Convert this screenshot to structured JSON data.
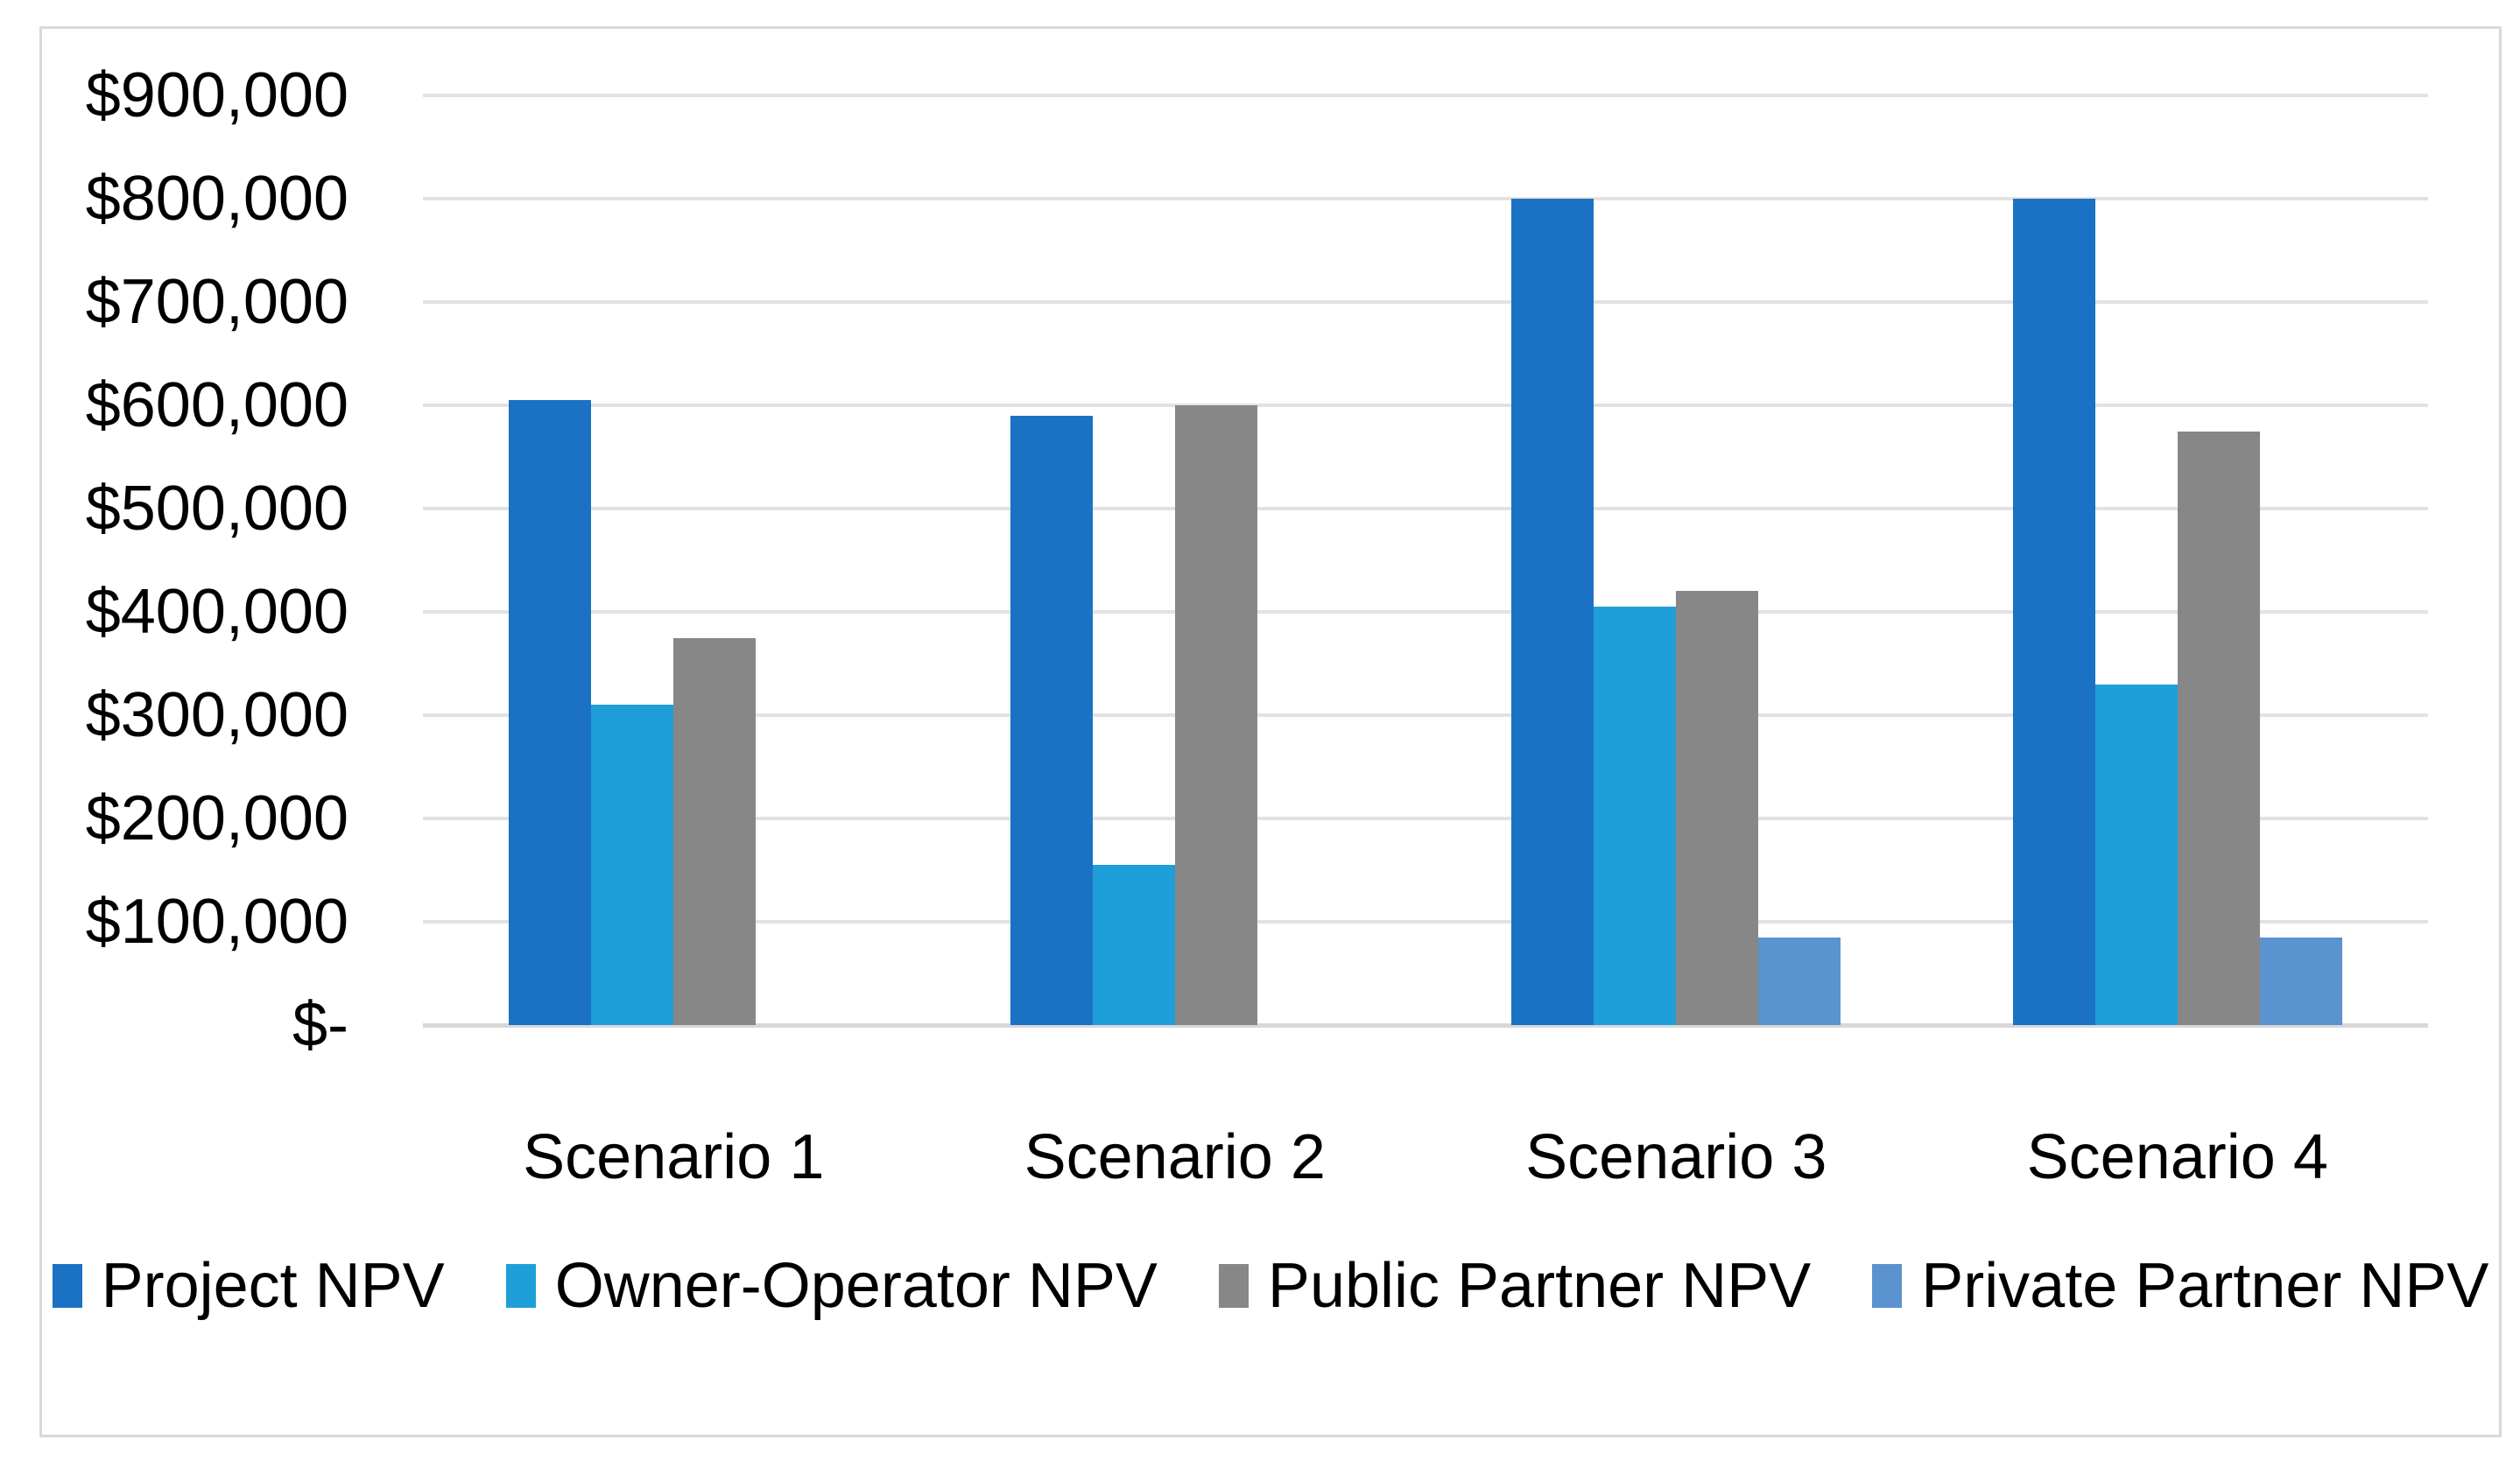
{
  "chart_data": {
    "type": "bar",
    "grouped": true,
    "title": "",
    "xlabel": "",
    "ylabel": "",
    "grid": "horizontal",
    "legend_position": "bottom",
    "background": "#FFFFFF",
    "text_color": "#000000",
    "gridline_color": "#E2E2E2",
    "axis_line_color": "#D8D8D8",
    "frame_border_color": "#D9D9D9",
    "categories": [
      "Scenario 1",
      "Scenario 2",
      "Scenario 3",
      "Scenario 4"
    ],
    "series": [
      {
        "name": "Project NPV",
        "color": "#1B72C4",
        "values": [
          605000,
          590000,
          800000,
          800000
        ]
      },
      {
        "name": "Owner-Operator NPV",
        "color": "#1E9FD9",
        "values": [
          310000,
          155000,
          405000,
          330000
        ]
      },
      {
        "name": "Public Partner NPV",
        "color": "#878787",
        "values": [
          375000,
          600000,
          420000,
          575000
        ]
      },
      {
        "name": "Private Partner NPV",
        "color": "#5B92D0",
        "values": [
          0,
          0,
          85000,
          85000
        ]
      }
    ],
    "ylim": [
      0,
      900000
    ],
    "ytick_step": 100000,
    "yticks": [
      {
        "value": 0,
        "label": "$-"
      },
      {
        "value": 100000,
        "label": "$100,000"
      },
      {
        "value": 200000,
        "label": "$200,000"
      },
      {
        "value": 300000,
        "label": "$300,000"
      },
      {
        "value": 400000,
        "label": "$400,000"
      },
      {
        "value": 500000,
        "label": "$500,000"
      },
      {
        "value": 600000,
        "label": "$600,000"
      },
      {
        "value": 700000,
        "label": "$700,000"
      },
      {
        "value": 800000,
        "label": "$800,000"
      },
      {
        "value": 900000,
        "label": "$900,000"
      }
    ]
  }
}
